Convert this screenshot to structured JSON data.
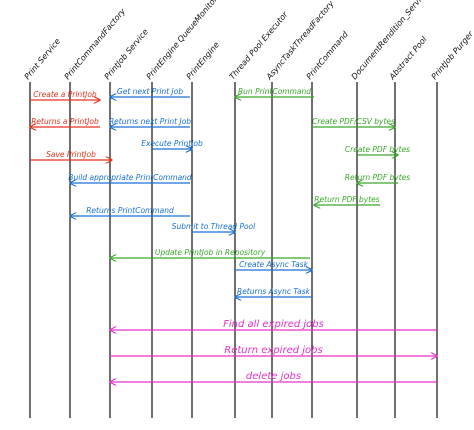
{
  "diagram": {
    "type": "sequence-diagram",
    "participants": [
      {
        "id": "p0",
        "label": "Print Service"
      },
      {
        "id": "p1",
        "label": "PrintCommandFactory"
      },
      {
        "id": "p2",
        "label": "PrintJob Service"
      },
      {
        "id": "p3",
        "label": "PrintEngine QueueMonitor"
      },
      {
        "id": "p4",
        "label": "PrintEngine"
      },
      {
        "id": "p5",
        "label": "Thread Pool Executor"
      },
      {
        "id": "p6",
        "label": "AsyncTaskThreadFactory"
      },
      {
        "id": "p7",
        "label": "PrintCommand"
      },
      {
        "id": "p8",
        "label": "DocumentRendition_Service"
      },
      {
        "id": "p9",
        "label": "Abstract Pool"
      },
      {
        "id": "p10",
        "label": "PrintJob Purger"
      }
    ],
    "colors": {
      "red": "#e8321e",
      "blue": "#1a6fd6",
      "green": "#3aa82a",
      "magenta": "#e632c8",
      "lifeline": "#111111"
    },
    "messages": [
      {
        "id": "m0",
        "from": "p0",
        "to": "p1",
        "label": "Create a PrintJob",
        "color": "red",
        "dir": "right"
      },
      {
        "id": "m1",
        "from": "p0",
        "to": "p1",
        "label": "Returns a PrintJob",
        "color": "red",
        "dir": "left"
      },
      {
        "id": "m2",
        "from": "p0",
        "to": "p2",
        "label": "Save PrintJob",
        "color": "red",
        "dir": "right"
      },
      {
        "id": "m3",
        "from": "p2",
        "to": "p4",
        "label": "Get next Print Job",
        "color": "blue",
        "dir": "left"
      },
      {
        "id": "m4",
        "from": "p2",
        "to": "p4",
        "label": "Returns next Print Job",
        "color": "blue",
        "dir": "left"
      },
      {
        "id": "m5",
        "from": "p3",
        "to": "p4",
        "label": "Execute PrintJob",
        "color": "blue",
        "dir": "right"
      },
      {
        "id": "m6",
        "from": "p1",
        "to": "p4",
        "label": "Build appropriate PrintCommand",
        "color": "blue",
        "dir": "left"
      },
      {
        "id": "m7",
        "from": "p1",
        "to": "p4",
        "label": "Returns PrintCommand",
        "color": "blue",
        "dir": "left"
      },
      {
        "id": "m8",
        "from": "p5",
        "to": "p7",
        "label": "Run PrintCommand",
        "color": "green",
        "dir": "left"
      },
      {
        "id": "m9",
        "from": "p7",
        "to": "p9",
        "label": "Create PDF/CSV bytes",
        "color": "green",
        "dir": "right"
      },
      {
        "id": "m10",
        "from": "p8",
        "to": "p10",
        "label": "Create PDF bytes",
        "color": "green",
        "dir": "right"
      },
      {
        "id": "m11",
        "from": "p8",
        "to": "p10",
        "label": "Return PDF bytes",
        "color": "green",
        "dir": "left"
      },
      {
        "id": "m12",
        "from": "p7",
        "to": "p9",
        "label": "Return PDF bytes",
        "color": "green",
        "dir": "left"
      },
      {
        "id": "m13",
        "from": "p4",
        "to": "p5",
        "label": "Submit to Thread Pool",
        "color": "blue",
        "dir": "right"
      },
      {
        "id": "m14",
        "from": "p2",
        "to": "p7",
        "label": "Update PrintJob in Repository",
        "color": "green",
        "dir": "left"
      },
      {
        "id": "m15",
        "from": "p5",
        "to": "p7",
        "label": "Create Async Task",
        "color": "blue",
        "dir": "right"
      },
      {
        "id": "m16",
        "from": "p5",
        "to": "p7",
        "label": "Returns Async Task",
        "color": "blue",
        "dir": "left"
      },
      {
        "id": "m17",
        "from": "p2",
        "to": "p10",
        "label": "Find all expired jobs",
        "color": "magenta",
        "dir": "left"
      },
      {
        "id": "m18",
        "from": "p2",
        "to": "p10",
        "label": "Return expired jobs",
        "color": "magenta",
        "dir": "right"
      },
      {
        "id": "m19",
        "from": "p2",
        "to": "p10",
        "label": "delete jobs",
        "color": "magenta",
        "dir": "left"
      }
    ]
  }
}
